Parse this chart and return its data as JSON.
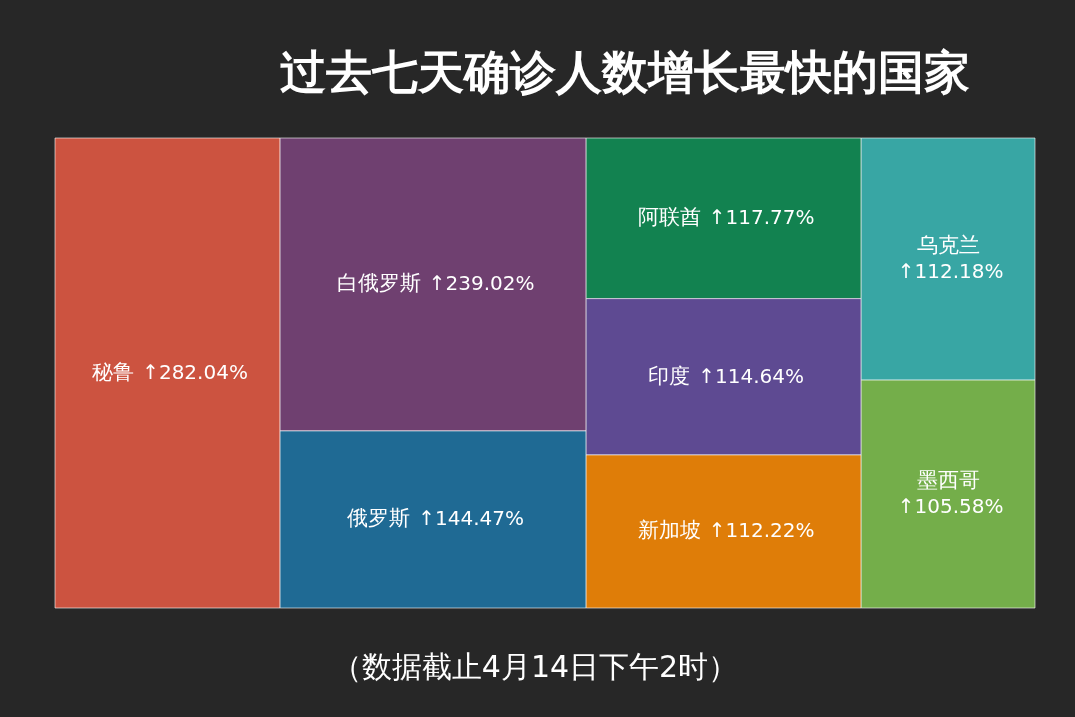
{
  "chart_data": {
    "type": "other",
    "title": "过去七天确诊人数增长最快的国家",
    "categories": [
      "秘鲁",
      "白俄罗斯",
      "俄罗斯",
      "阿联酋",
      "印度",
      "新加坡",
      "乌克兰",
      "墨西哥"
    ],
    "values": [
      282.04,
      239.02,
      144.47,
      117.77,
      114.64,
      112.22,
      112.18,
      105.58
    ],
    "value_labels": [
      "↑282.04%",
      "↑239.02%",
      "↑144.47%",
      "↑117.77%",
      "↑114.64%",
      "↑112.22%",
      "↑112.18%",
      "↑105.58%"
    ],
    "colors": [
      "#cc5340",
      "#6f4070",
      "#1f6a94",
      "#128250",
      "#5e4a92",
      "#df7d08",
      "#38a6a4",
      "#74ae4a"
    ],
    "annotations": [
      "（数据截止4月14日下午2时）"
    ]
  }
}
